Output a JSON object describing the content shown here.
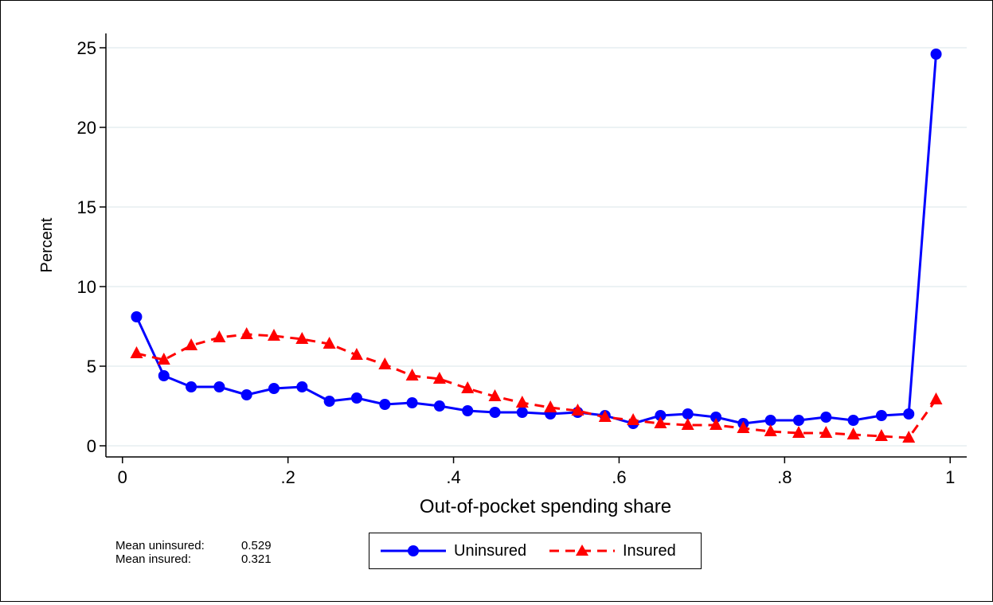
{
  "chart_data": {
    "type": "line",
    "title": "",
    "xlabel": "Out-of-pocket spending share",
    "ylabel": "Percent",
    "xlim": [
      -0.02,
      1.02
    ],
    "ylim": [
      -0.7,
      25.9
    ],
    "xticks": [
      0,
      0.2,
      0.4,
      0.6,
      0.8,
      1
    ],
    "xtick_labels": [
      "0",
      ".2",
      ".4",
      ".6",
      ".8",
      "1"
    ],
    "yticks": [
      0,
      5,
      10,
      15,
      20,
      25
    ],
    "ytick_labels": [
      "0",
      "5",
      "10",
      "15",
      "20",
      "25"
    ],
    "grid": "horizontal",
    "legend_position": "bottom",
    "x": [
      0.017,
      0.05,
      0.083,
      0.117,
      0.15,
      0.183,
      0.217,
      0.25,
      0.283,
      0.317,
      0.35,
      0.383,
      0.417,
      0.45,
      0.483,
      0.517,
      0.55,
      0.583,
      0.617,
      0.65,
      0.683,
      0.717,
      0.75,
      0.783,
      0.817,
      0.85,
      0.883,
      0.917,
      0.95,
      0.983
    ],
    "series": [
      {
        "name": "Uninsured",
        "color": "#0000ff",
        "marker": "circle",
        "line_style": "solid",
        "values": [
          8.1,
          4.4,
          3.7,
          3.7,
          3.2,
          3.6,
          3.7,
          2.8,
          3.0,
          2.6,
          2.7,
          2.5,
          2.2,
          2.1,
          2.1,
          2.0,
          2.1,
          1.9,
          1.4,
          1.9,
          2.0,
          1.8,
          1.4,
          1.6,
          1.6,
          1.8,
          1.6,
          1.9,
          2.0,
          24.6
        ]
      },
      {
        "name": "Insured",
        "color": "#ff0000",
        "marker": "triangle",
        "line_style": "dashed",
        "values": [
          5.8,
          5.4,
          6.3,
          6.8,
          7.0,
          6.9,
          6.7,
          6.4,
          5.7,
          5.1,
          4.4,
          4.2,
          3.6,
          3.1,
          2.7,
          2.4,
          2.2,
          1.8,
          1.6,
          1.4,
          1.3,
          1.3,
          1.1,
          0.9,
          0.8,
          0.8,
          0.7,
          0.6,
          0.5,
          2.9
        ]
      }
    ]
  },
  "notes": {
    "mean_uninsured_label": "Mean uninsured:",
    "mean_uninsured_value": "0.529",
    "mean_insured_label": "Mean insured:",
    "mean_insured_value": "0.321"
  }
}
